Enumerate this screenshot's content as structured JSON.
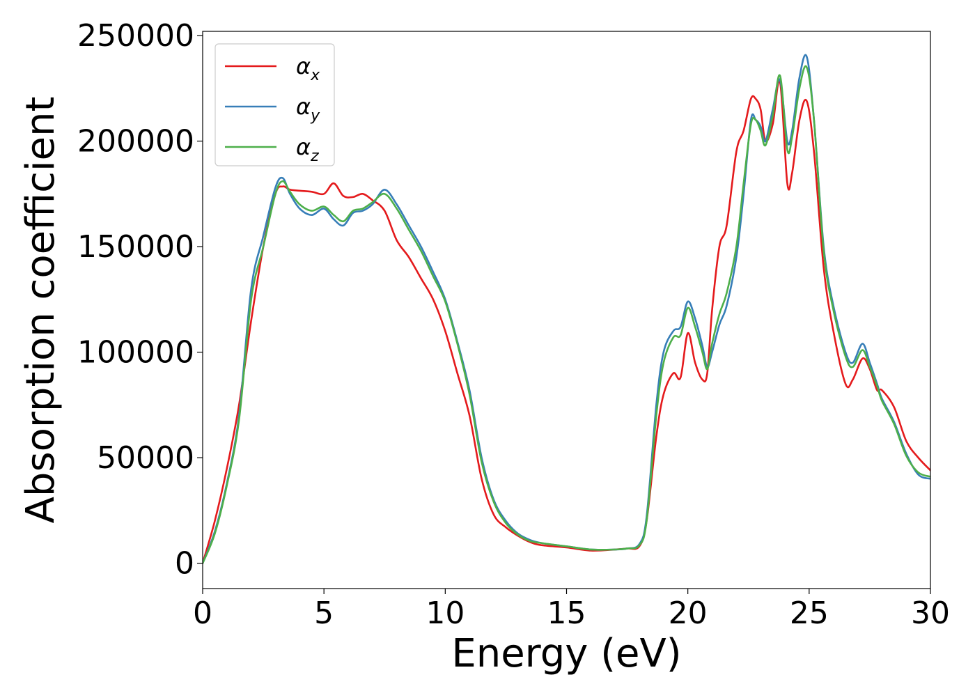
{
  "chart_data": {
    "type": "line",
    "title": "",
    "xlabel": "Energy (eV)",
    "ylabel": "Absorption coefficient",
    "xlim": [
      0,
      30
    ],
    "ylim": [
      -12000,
      252000
    ],
    "xticks": [
      0,
      5,
      10,
      15,
      20,
      25,
      30
    ],
    "yticks": [
      0,
      50000,
      100000,
      150000,
      200000,
      250000
    ],
    "grid": false,
    "legend_position": "upper-left",
    "series": [
      {
        "name": "α",
        "subscript": "x",
        "color": "#e41a1c",
        "x": [
          0,
          0.5,
          1.0,
          1.5,
          2.0,
          2.5,
          3.0,
          3.3,
          3.6,
          4.0,
          4.5,
          5.0,
          5.4,
          5.8,
          6.2,
          6.6,
          7.0,
          7.5,
          8.0,
          8.5,
          9.0,
          9.5,
          10.0,
          10.5,
          11.0,
          11.5,
          12.0,
          12.5,
          13.0,
          13.5,
          14.0,
          15.0,
          16.0,
          17.0,
          17.5,
          18.0,
          18.3,
          18.7,
          19.0,
          19.4,
          19.7,
          20.0,
          20.3,
          20.6,
          20.8,
          21.0,
          21.3,
          21.6,
          22.0,
          22.3,
          22.6,
          22.8,
          23.0,
          23.2,
          23.5,
          23.8,
          24.1,
          24.3,
          24.6,
          24.9,
          25.2,
          25.6,
          26.0,
          26.5,
          26.8,
          27.2,
          27.5,
          27.8,
          28.0,
          28.5,
          29.0,
          29.5,
          30.0
        ],
        "y": [
          0,
          20000,
          45000,
          75000,
          115000,
          150000,
          175000,
          178500,
          177000,
          176500,
          176000,
          175000,
          180000,
          174000,
          173500,
          175000,
          172000,
          167000,
          153000,
          145000,
          135000,
          125000,
          110000,
          90000,
          70000,
          40000,
          23000,
          17000,
          13000,
          10000,
          8500,
          7500,
          6000,
          6500,
          7000,
          8000,
          20000,
          60000,
          80000,
          90000,
          88000,
          109000,
          95000,
          87000,
          90000,
          120000,
          150000,
          160000,
          195000,
          205000,
          220000,
          220000,
          215000,
          200000,
          208000,
          228000,
          180000,
          185000,
          210000,
          219000,
          195000,
          140000,
          110000,
          85000,
          87000,
          97000,
          92000,
          82000,
          82000,
          74000,
          58000,
          50000,
          44000
        ]
      },
      {
        "name": "α",
        "subscript": "y",
        "color": "#377eb8",
        "x": [
          0,
          0.5,
          1.0,
          1.5,
          2.0,
          2.5,
          3.0,
          3.3,
          3.6,
          4.0,
          4.5,
          5.0,
          5.4,
          5.8,
          6.2,
          6.6,
          7.0,
          7.5,
          8.0,
          8.5,
          9.0,
          9.5,
          10.0,
          10.5,
          11.0,
          11.5,
          12.0,
          12.5,
          13.0,
          13.5,
          14.0,
          15.0,
          16.0,
          17.0,
          17.5,
          18.0,
          18.3,
          18.7,
          19.0,
          19.4,
          19.7,
          20.0,
          20.3,
          20.6,
          20.8,
          21.0,
          21.3,
          21.6,
          22.0,
          22.3,
          22.6,
          22.8,
          23.0,
          23.2,
          23.5,
          23.8,
          24.1,
          24.3,
          24.6,
          24.9,
          25.2,
          25.6,
          26.0,
          26.5,
          26.8,
          27.2,
          27.5,
          27.8,
          28.0,
          28.5,
          29.0,
          29.5,
          30.0
        ],
        "y": [
          0,
          15000,
          38000,
          70000,
          130000,
          155000,
          178000,
          182500,
          175000,
          168000,
          165000,
          168000,
          163000,
          160000,
          166000,
          167000,
          170000,
          177000,
          170000,
          160000,
          150000,
          138000,
          125000,
          105000,
          82000,
          50000,
          30000,
          20000,
          14000,
          11000,
          9500,
          8000,
          6500,
          6500,
          7000,
          9000,
          22000,
          75000,
          100000,
          110000,
          112000,
          124000,
          116000,
          103000,
          93000,
          100000,
          113000,
          122000,
          145000,
          175000,
          210000,
          210000,
          207000,
          200000,
          215000,
          229000,
          200000,
          205000,
          230000,
          240000,
          210000,
          150000,
          122000,
          100000,
          95000,
          104000,
          95000,
          85000,
          78000,
          67000,
          52000,
          42000,
          40000
        ]
      },
      {
        "name": "α",
        "subscript": "z",
        "color": "#4daf4a",
        "x": [
          0,
          0.5,
          1.0,
          1.5,
          2.0,
          2.5,
          3.0,
          3.3,
          3.6,
          4.0,
          4.5,
          5.0,
          5.4,
          5.8,
          6.2,
          6.6,
          7.0,
          7.5,
          8.0,
          8.5,
          9.0,
          9.5,
          10.0,
          10.5,
          11.0,
          11.5,
          12.0,
          12.5,
          13.0,
          13.5,
          14.0,
          15.0,
          16.0,
          17.0,
          17.5,
          18.0,
          18.3,
          18.7,
          19.0,
          19.4,
          19.7,
          20.0,
          20.3,
          20.6,
          20.8,
          21.0,
          21.3,
          21.6,
          22.0,
          22.3,
          22.6,
          22.8,
          23.0,
          23.2,
          23.5,
          23.8,
          24.1,
          24.3,
          24.6,
          24.9,
          25.2,
          25.6,
          26.0,
          26.5,
          26.8,
          27.2,
          27.5,
          27.8,
          28.0,
          28.5,
          29.0,
          29.5,
          30.0
        ],
        "y": [
          0,
          14000,
          37000,
          68000,
          125000,
          150000,
          175000,
          181000,
          176000,
          170000,
          167000,
          169000,
          165000,
          162000,
          167000,
          168000,
          171000,
          175000,
          168000,
          158000,
          148000,
          136000,
          124000,
          104000,
          80000,
          48000,
          29000,
          19000,
          13500,
          10500,
          9500,
          8000,
          6500,
          6500,
          7000,
          8500,
          20000,
          70000,
          95000,
          107000,
          108000,
          121000,
          112000,
          100000,
          92000,
          104000,
          118000,
          128000,
          150000,
          180000,
          208000,
          210000,
          205000,
          198000,
          212000,
          231000,
          196000,
          202000,
          225000,
          235000,
          210000,
          148000,
          120000,
          98000,
          93000,
          101000,
          93000,
          84000,
          77000,
          66000,
          51000,
          43000,
          41000
        ]
      }
    ]
  }
}
